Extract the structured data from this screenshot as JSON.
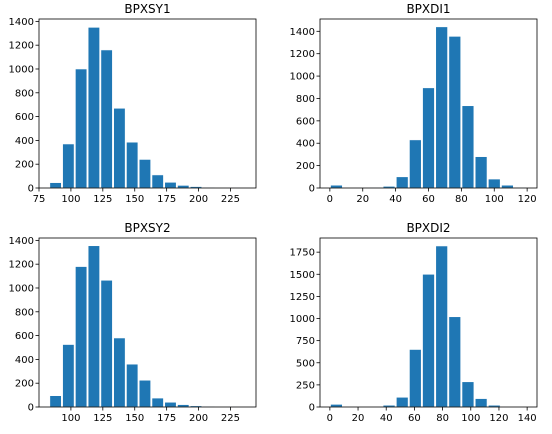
{
  "chart_data": [
    {
      "type": "bar",
      "title": "BPXSY1",
      "xlim": [
        75,
        245
      ],
      "ylim": [
        0,
        1420
      ],
      "xticks": [
        75,
        100,
        125,
        150,
        175,
        200,
        225
      ],
      "yticks": [
        0,
        200,
        400,
        600,
        800,
        1000,
        1200,
        1400
      ],
      "bin_edges": [
        83,
        93,
        103,
        113,
        123,
        133,
        143,
        153,
        163,
        173,
        183,
        193,
        203,
        213,
        223,
        233
      ],
      "values": [
        45,
        370,
        1000,
        1350,
        1160,
        670,
        385,
        240,
        110,
        48,
        22,
        12,
        5,
        2,
        1
      ],
      "color": "#1f77b4"
    },
    {
      "type": "bar",
      "title": "BPXDI1",
      "xlim": [
        -6,
        126
      ],
      "ylim": [
        0,
        1510
      ],
      "xticks": [
        0,
        20,
        40,
        60,
        80,
        100,
        120
      ],
      "yticks": [
        0,
        200,
        400,
        600,
        800,
        1000,
        1200,
        1400
      ],
      "bin_edges": [
        0,
        8,
        16,
        24,
        32,
        40,
        48,
        56,
        64,
        72,
        80,
        88,
        96,
        104,
        112,
        120
      ],
      "values": [
        25,
        0,
        0,
        5,
        15,
        100,
        430,
        895,
        1440,
        1355,
        735,
        280,
        80,
        25,
        5
      ],
      "color": "#1f77b4"
    },
    {
      "type": "bar",
      "title": "BPXSY2",
      "xlim": [
        75,
        245
      ],
      "ylim": [
        0,
        1420
      ],
      "xticks": [
        100,
        125,
        150,
        175,
        200,
        225
      ],
      "yticks": [
        0,
        200,
        400,
        600,
        800,
        1000,
        1200,
        1400
      ],
      "bin_edges": [
        83,
        93,
        103,
        113,
        123,
        133,
        143,
        153,
        163,
        173,
        183,
        193,
        203,
        213,
        223,
        233
      ],
      "values": [
        95,
        525,
        1180,
        1355,
        1065,
        580,
        360,
        225,
        75,
        40,
        20,
        10,
        5,
        2,
        1
      ],
      "color": "#1f77b4"
    },
    {
      "type": "bar",
      "title": "BPXDI2",
      "xlim": [
        -7,
        147
      ],
      "ylim": [
        0,
        1910
      ],
      "xticks": [
        0,
        20,
        40,
        60,
        80,
        100,
        120,
        140
      ],
      "yticks": [
        0,
        250,
        500,
        750,
        1000,
        1250,
        1500,
        1750
      ],
      "bin_edges": [
        0,
        9.3,
        18.7,
        28,
        37.3,
        46.7,
        56,
        65.3,
        74.7,
        84,
        93.3,
        102.7,
        112,
        121.3,
        130.7,
        140
      ],
      "values": [
        30,
        0,
        0,
        5,
        20,
        110,
        650,
        1500,
        1820,
        1020,
        285,
        95,
        20,
        5,
        2
      ],
      "color": "#1f77b4"
    }
  ]
}
